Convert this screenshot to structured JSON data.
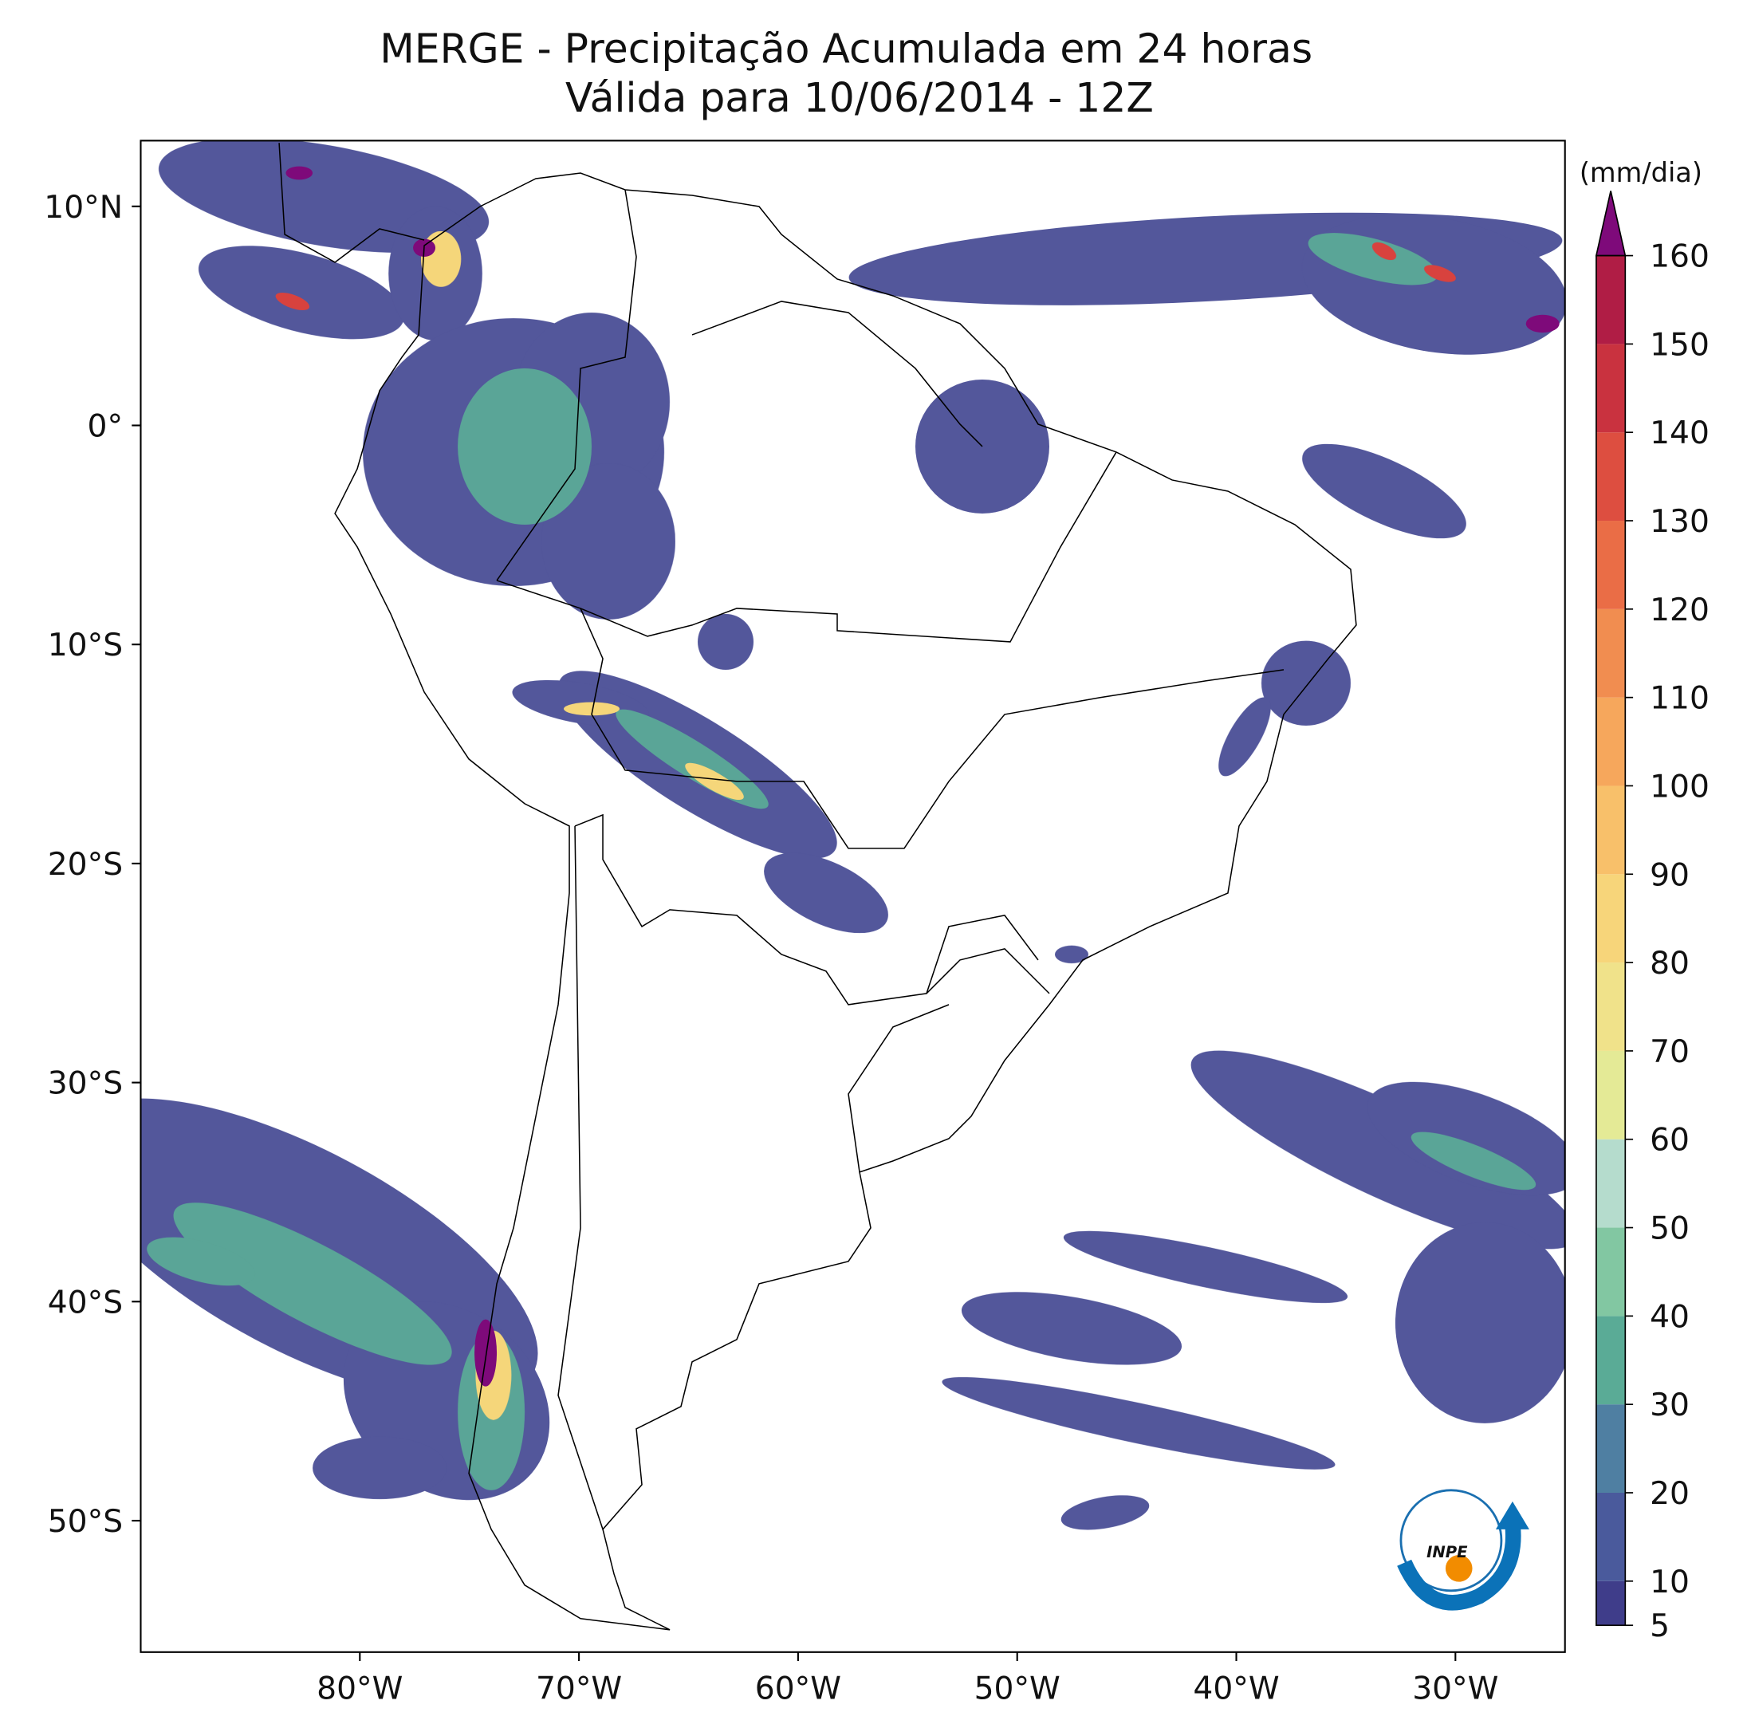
{
  "title": "MERGE - Precipitação Acumulada em 24 horas",
  "subtitle": "Válida para 10/06/2014 - 12Z",
  "map": {
    "xlim": [
      -90,
      -25
    ],
    "ylim": [
      -56,
      13
    ],
    "xticks": [
      {
        "value": -80,
        "label": "80°W"
      },
      {
        "value": -70,
        "label": "70°W"
      },
      {
        "value": -60,
        "label": "60°W"
      },
      {
        "value": -50,
        "label": "50°W"
      },
      {
        "value": -40,
        "label": "40°W"
      },
      {
        "value": -30,
        "label": "30°W"
      }
    ],
    "yticks": [
      {
        "value": 10,
        "label": "10°N"
      },
      {
        "value": 0,
        "label": "0°"
      },
      {
        "value": -10,
        "label": "10°S"
      },
      {
        "value": -20,
        "label": "20°S"
      },
      {
        "value": -30,
        "label": "30°S"
      },
      {
        "value": -40,
        "label": "40°S"
      },
      {
        "value": -50,
        "label": "50°S"
      }
    ]
  },
  "colorbar": {
    "label": "(mm/dia)",
    "lim": [
      5,
      160
    ],
    "ticks": [
      5,
      10,
      20,
      30,
      40,
      50,
      60,
      70,
      80,
      90,
      100,
      110,
      120,
      130,
      140,
      150,
      160
    ],
    "colors": [
      "#3f3d8a",
      "#4a5a9c",
      "#4f7fa2",
      "#5aab96",
      "#82c7a2",
      "#b5dccd",
      "#e4ea96",
      "#f0e28a",
      "#f7d57a",
      "#f8c06a",
      "#f6a75c",
      "#f18d50",
      "#ea6d46",
      "#dd4e40",
      "#c9323f",
      "#b01d45"
    ],
    "extend_color": "#7e0a7a"
  },
  "logo": "INPE"
}
